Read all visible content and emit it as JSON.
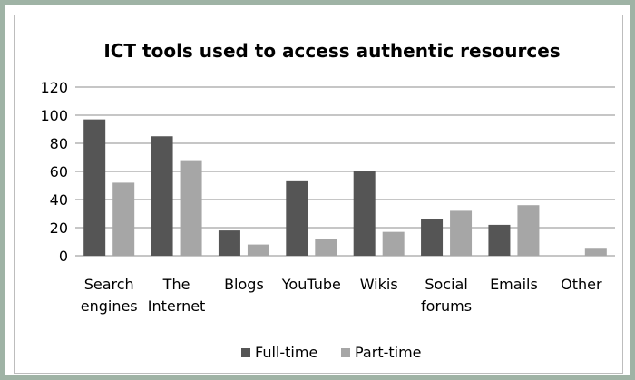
{
  "chart_data": {
    "type": "bar",
    "title": "ICT tools used to access authentic resources",
    "categories": [
      [
        "Search",
        "engines"
      ],
      [
        "The",
        "Internet"
      ],
      [
        "Blogs"
      ],
      [
        "YouTube"
      ],
      [
        "Wikis"
      ],
      [
        "Social",
        "forums"
      ],
      [
        "Emails"
      ],
      [
        "Other"
      ]
    ],
    "series": [
      {
        "name": "Full-time",
        "color": "#555555",
        "values": [
          97,
          85,
          18,
          53,
          60,
          26,
          22,
          0
        ]
      },
      {
        "name": "Part-time",
        "color": "#a6a6a6",
        "values": [
          52,
          68,
          8,
          12,
          17,
          32,
          36,
          5
        ]
      }
    ],
    "ylim": [
      0,
      120
    ],
    "yticks": [
      "0",
      "20",
      "40",
      "60",
      "80",
      "100",
      "120"
    ],
    "grid": true,
    "legend_position": "bottom"
  }
}
